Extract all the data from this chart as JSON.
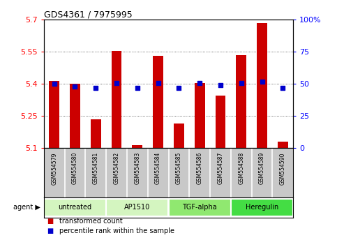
{
  "title": "GDS4361 / 7975995",
  "samples": [
    "GSM554579",
    "GSM554580",
    "GSM554581",
    "GSM554582",
    "GSM554583",
    "GSM554584",
    "GSM554585",
    "GSM554586",
    "GSM554587",
    "GSM554588",
    "GSM554589",
    "GSM554590"
  ],
  "red_values": [
    5.415,
    5.4,
    5.235,
    5.555,
    5.115,
    5.53,
    5.215,
    5.405,
    5.345,
    5.535,
    5.685,
    5.13
  ],
  "blue_values": [
    50,
    48,
    47,
    51,
    47,
    51,
    47,
    51,
    49,
    51,
    52,
    47
  ],
  "y_min": 5.1,
  "y_max": 5.7,
  "y_ticks": [
    5.1,
    5.25,
    5.4,
    5.55,
    5.7
  ],
  "y_tick_labels": [
    "5.1",
    "5.25",
    "5.4",
    "5.55",
    "5.7"
  ],
  "y2_ticks": [
    0,
    25,
    50,
    75,
    100
  ],
  "y2_tick_labels": [
    "0",
    "25",
    "50",
    "75",
    "100%"
  ],
  "groups": [
    {
      "label": "untreated",
      "start": 0,
      "end": 3,
      "color": "#d4f5c0"
    },
    {
      "label": "AP1510",
      "start": 3,
      "end": 6,
      "color": "#d4f5c0"
    },
    {
      "label": "TGF-alpha",
      "start": 6,
      "end": 9,
      "color": "#90e870"
    },
    {
      "label": "Heregulin",
      "start": 9,
      "end": 12,
      "color": "#44dd44"
    }
  ],
  "bar_color": "#cc0000",
  "dot_color": "#0000cc",
  "sample_box_color": "#c8c8c8",
  "legend_items": [
    {
      "color": "#cc0000",
      "label": "transformed count"
    },
    {
      "color": "#0000cc",
      "label": "percentile rank within the sample"
    }
  ]
}
